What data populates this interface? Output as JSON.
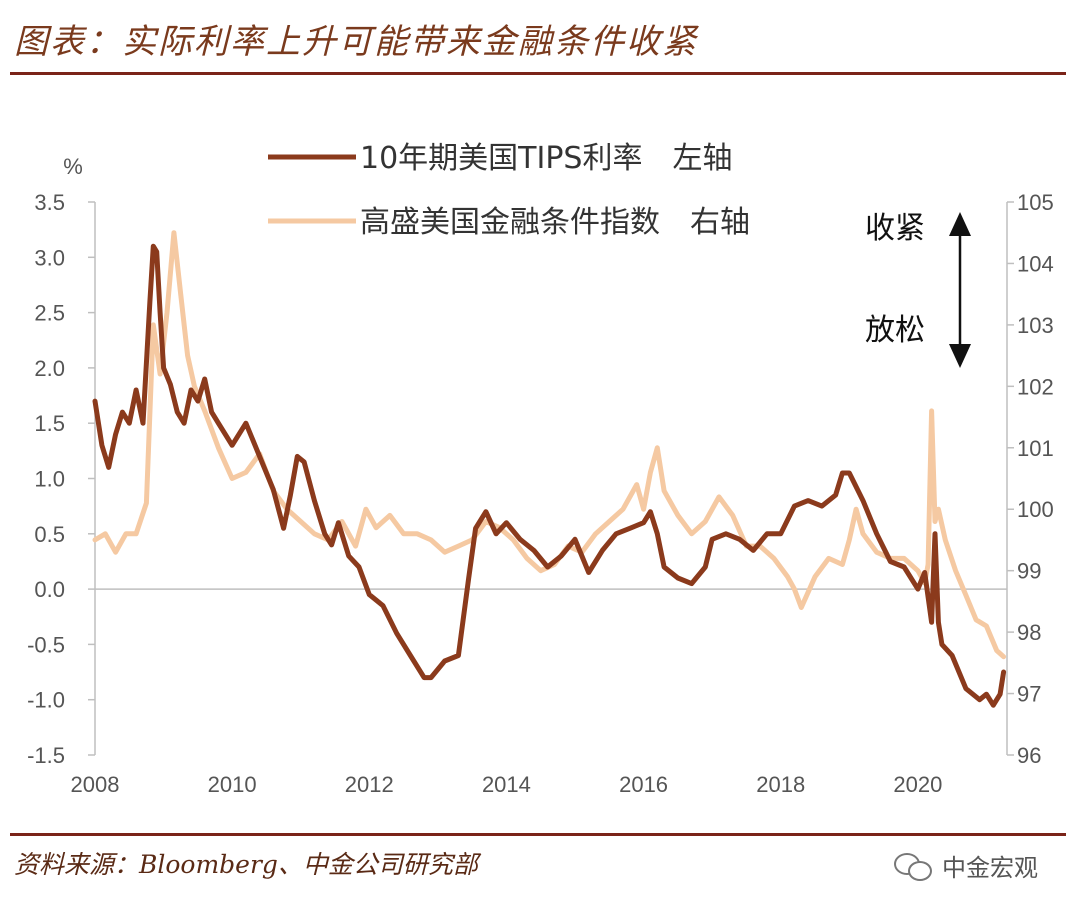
{
  "header": {
    "title": "图表：实际利率上升可能带来金融条件收紧"
  },
  "footer": {
    "source": "资料来源：Bloomberg、中金公司研究部",
    "brand": "中金宏观",
    "brand_icon": "wechat-icon"
  },
  "chart_data": {
    "type": "line",
    "left_axis": {
      "unit_label": "%",
      "ticks": [
        "3.5",
        "3.0",
        "2.5",
        "2.0",
        "1.5",
        "1.0",
        "0.5",
        "0.0",
        "-0.5",
        "-1.0",
        "-1.5"
      ],
      "min": -1.5,
      "max": 3.5
    },
    "right_axis": {
      "ticks": [
        "105",
        "104",
        "103",
        "102",
        "101",
        "100",
        "99",
        "98",
        "97",
        "96"
      ],
      "min": 96,
      "max": 105
    },
    "x_axis": {
      "ticks": [
        "2008",
        "2010",
        "2012",
        "2014",
        "2016",
        "2018",
        "2020"
      ],
      "min": 2008,
      "max": 2021.3
    },
    "annotations": {
      "up": "收紧",
      "down": "放松"
    },
    "series": [
      {
        "name": "10年期美国TIPS利率　左轴",
        "axis": "left",
        "color": "#8b3a1c",
        "x": [
          2008.0,
          2008.1,
          2008.2,
          2008.3,
          2008.4,
          2008.5,
          2008.6,
          2008.7,
          2008.8,
          2008.85,
          2008.9,
          2008.95,
          2009.0,
          2009.1,
          2009.2,
          2009.3,
          2009.4,
          2009.5,
          2009.6,
          2009.7,
          2009.8,
          2009.9,
          2010.0,
          2010.2,
          2010.4,
          2010.6,
          2010.75,
          2010.85,
          2010.95,
          2011.05,
          2011.2,
          2011.35,
          2011.45,
          2011.55,
          2011.7,
          2011.85,
          2012.0,
          2012.2,
          2012.4,
          2012.6,
          2012.8,
          2012.9,
          2013.1,
          2013.3,
          2013.45,
          2013.55,
          2013.7,
          2013.85,
          2014.0,
          2014.2,
          2014.4,
          2014.6,
          2014.8,
          2015.0,
          2015.2,
          2015.4,
          2015.6,
          2015.8,
          2016.0,
          2016.1,
          2016.2,
          2016.3,
          2016.5,
          2016.7,
          2016.9,
          2017.0,
          2017.2,
          2017.4,
          2017.6,
          2017.8,
          2018.0,
          2018.2,
          2018.4,
          2018.6,
          2018.8,
          2018.9,
          2019.0,
          2019.2,
          2019.4,
          2019.6,
          2019.8,
          2020.0,
          2020.1,
          2020.2,
          2020.25,
          2020.3,
          2020.35,
          2020.5,
          2020.7,
          2020.9,
          2021.0,
          2021.1,
          2021.2,
          2021.25
        ],
        "y": [
          1.7,
          1.3,
          1.1,
          1.4,
          1.6,
          1.5,
          1.8,
          1.5,
          2.6,
          3.1,
          3.05,
          2.5,
          2.0,
          1.85,
          1.6,
          1.5,
          1.8,
          1.7,
          1.9,
          1.6,
          1.5,
          1.4,
          1.3,
          1.5,
          1.2,
          0.9,
          0.55,
          0.85,
          1.2,
          1.15,
          0.8,
          0.5,
          0.4,
          0.6,
          0.3,
          0.2,
          -0.05,
          -0.15,
          -0.4,
          -0.6,
          -0.8,
          -0.8,
          -0.65,
          -0.6,
          0.1,
          0.55,
          0.7,
          0.5,
          0.6,
          0.45,
          0.35,
          0.2,
          0.3,
          0.45,
          0.15,
          0.35,
          0.5,
          0.55,
          0.6,
          0.7,
          0.5,
          0.2,
          0.1,
          0.05,
          0.2,
          0.45,
          0.5,
          0.45,
          0.35,
          0.5,
          0.5,
          0.75,
          0.8,
          0.75,
          0.85,
          1.05,
          1.05,
          0.8,
          0.5,
          0.25,
          0.2,
          0.0,
          0.15,
          -0.3,
          0.5,
          -0.3,
          -0.5,
          -0.6,
          -0.9,
          -1.0,
          -0.95,
          -1.05,
          -0.95,
          -0.75
        ]
      },
      {
        "name": "高盛美国金融条件指数　右轴",
        "axis": "right",
        "color": "#f5c9a2",
        "x": [
          2008.0,
          2008.15,
          2008.3,
          2008.45,
          2008.6,
          2008.75,
          2008.85,
          2008.95,
          2009.05,
          2009.15,
          2009.25,
          2009.35,
          2009.45,
          2009.6,
          2009.8,
          2010.0,
          2010.2,
          2010.4,
          2010.6,
          2010.8,
          2011.0,
          2011.2,
          2011.4,
          2011.6,
          2011.8,
          2011.95,
          2012.1,
          2012.3,
          2012.5,
          2012.7,
          2012.9,
          2013.1,
          2013.3,
          2013.5,
          2013.7,
          2013.9,
          2014.1,
          2014.3,
          2014.5,
          2014.7,
          2014.9,
          2015.1,
          2015.3,
          2015.5,
          2015.7,
          2015.9,
          2016.0,
          2016.1,
          2016.2,
          2016.3,
          2016.5,
          2016.7,
          2016.9,
          2017.1,
          2017.3,
          2017.5,
          2017.7,
          2017.9,
          2018.1,
          2018.2,
          2018.3,
          2018.5,
          2018.7,
          2018.9,
          2019.0,
          2019.1,
          2019.2,
          2019.4,
          2019.6,
          2019.8,
          2020.0,
          2020.1,
          2020.15,
          2020.2,
          2020.25,
          2020.3,
          2020.4,
          2020.55,
          2020.7,
          2020.85,
          2021.0,
          2021.15,
          2021.25
        ],
        "y": [
          99.5,
          99.6,
          99.3,
          99.6,
          99.6,
          100.1,
          103.0,
          102.2,
          103.2,
          104.5,
          103.5,
          102.5,
          102.0,
          101.6,
          101.0,
          100.5,
          100.6,
          100.9,
          100.3,
          100.0,
          99.8,
          99.6,
          99.5,
          99.8,
          99.4,
          100.0,
          99.7,
          99.9,
          99.6,
          99.6,
          99.5,
          99.3,
          99.4,
          99.5,
          99.8,
          99.7,
          99.5,
          99.2,
          99.0,
          99.1,
          99.4,
          99.3,
          99.6,
          99.8,
          100.0,
          100.4,
          100.0,
          100.6,
          101.0,
          100.3,
          99.9,
          99.6,
          99.8,
          100.2,
          99.9,
          99.4,
          99.4,
          99.2,
          98.9,
          98.7,
          98.4,
          98.9,
          99.2,
          99.1,
          99.5,
          100.0,
          99.6,
          99.3,
          99.2,
          99.2,
          99.0,
          98.8,
          99.1,
          101.6,
          99.8,
          100.0,
          99.5,
          99.0,
          98.6,
          98.2,
          98.1,
          97.7,
          97.6
        ]
      }
    ]
  }
}
